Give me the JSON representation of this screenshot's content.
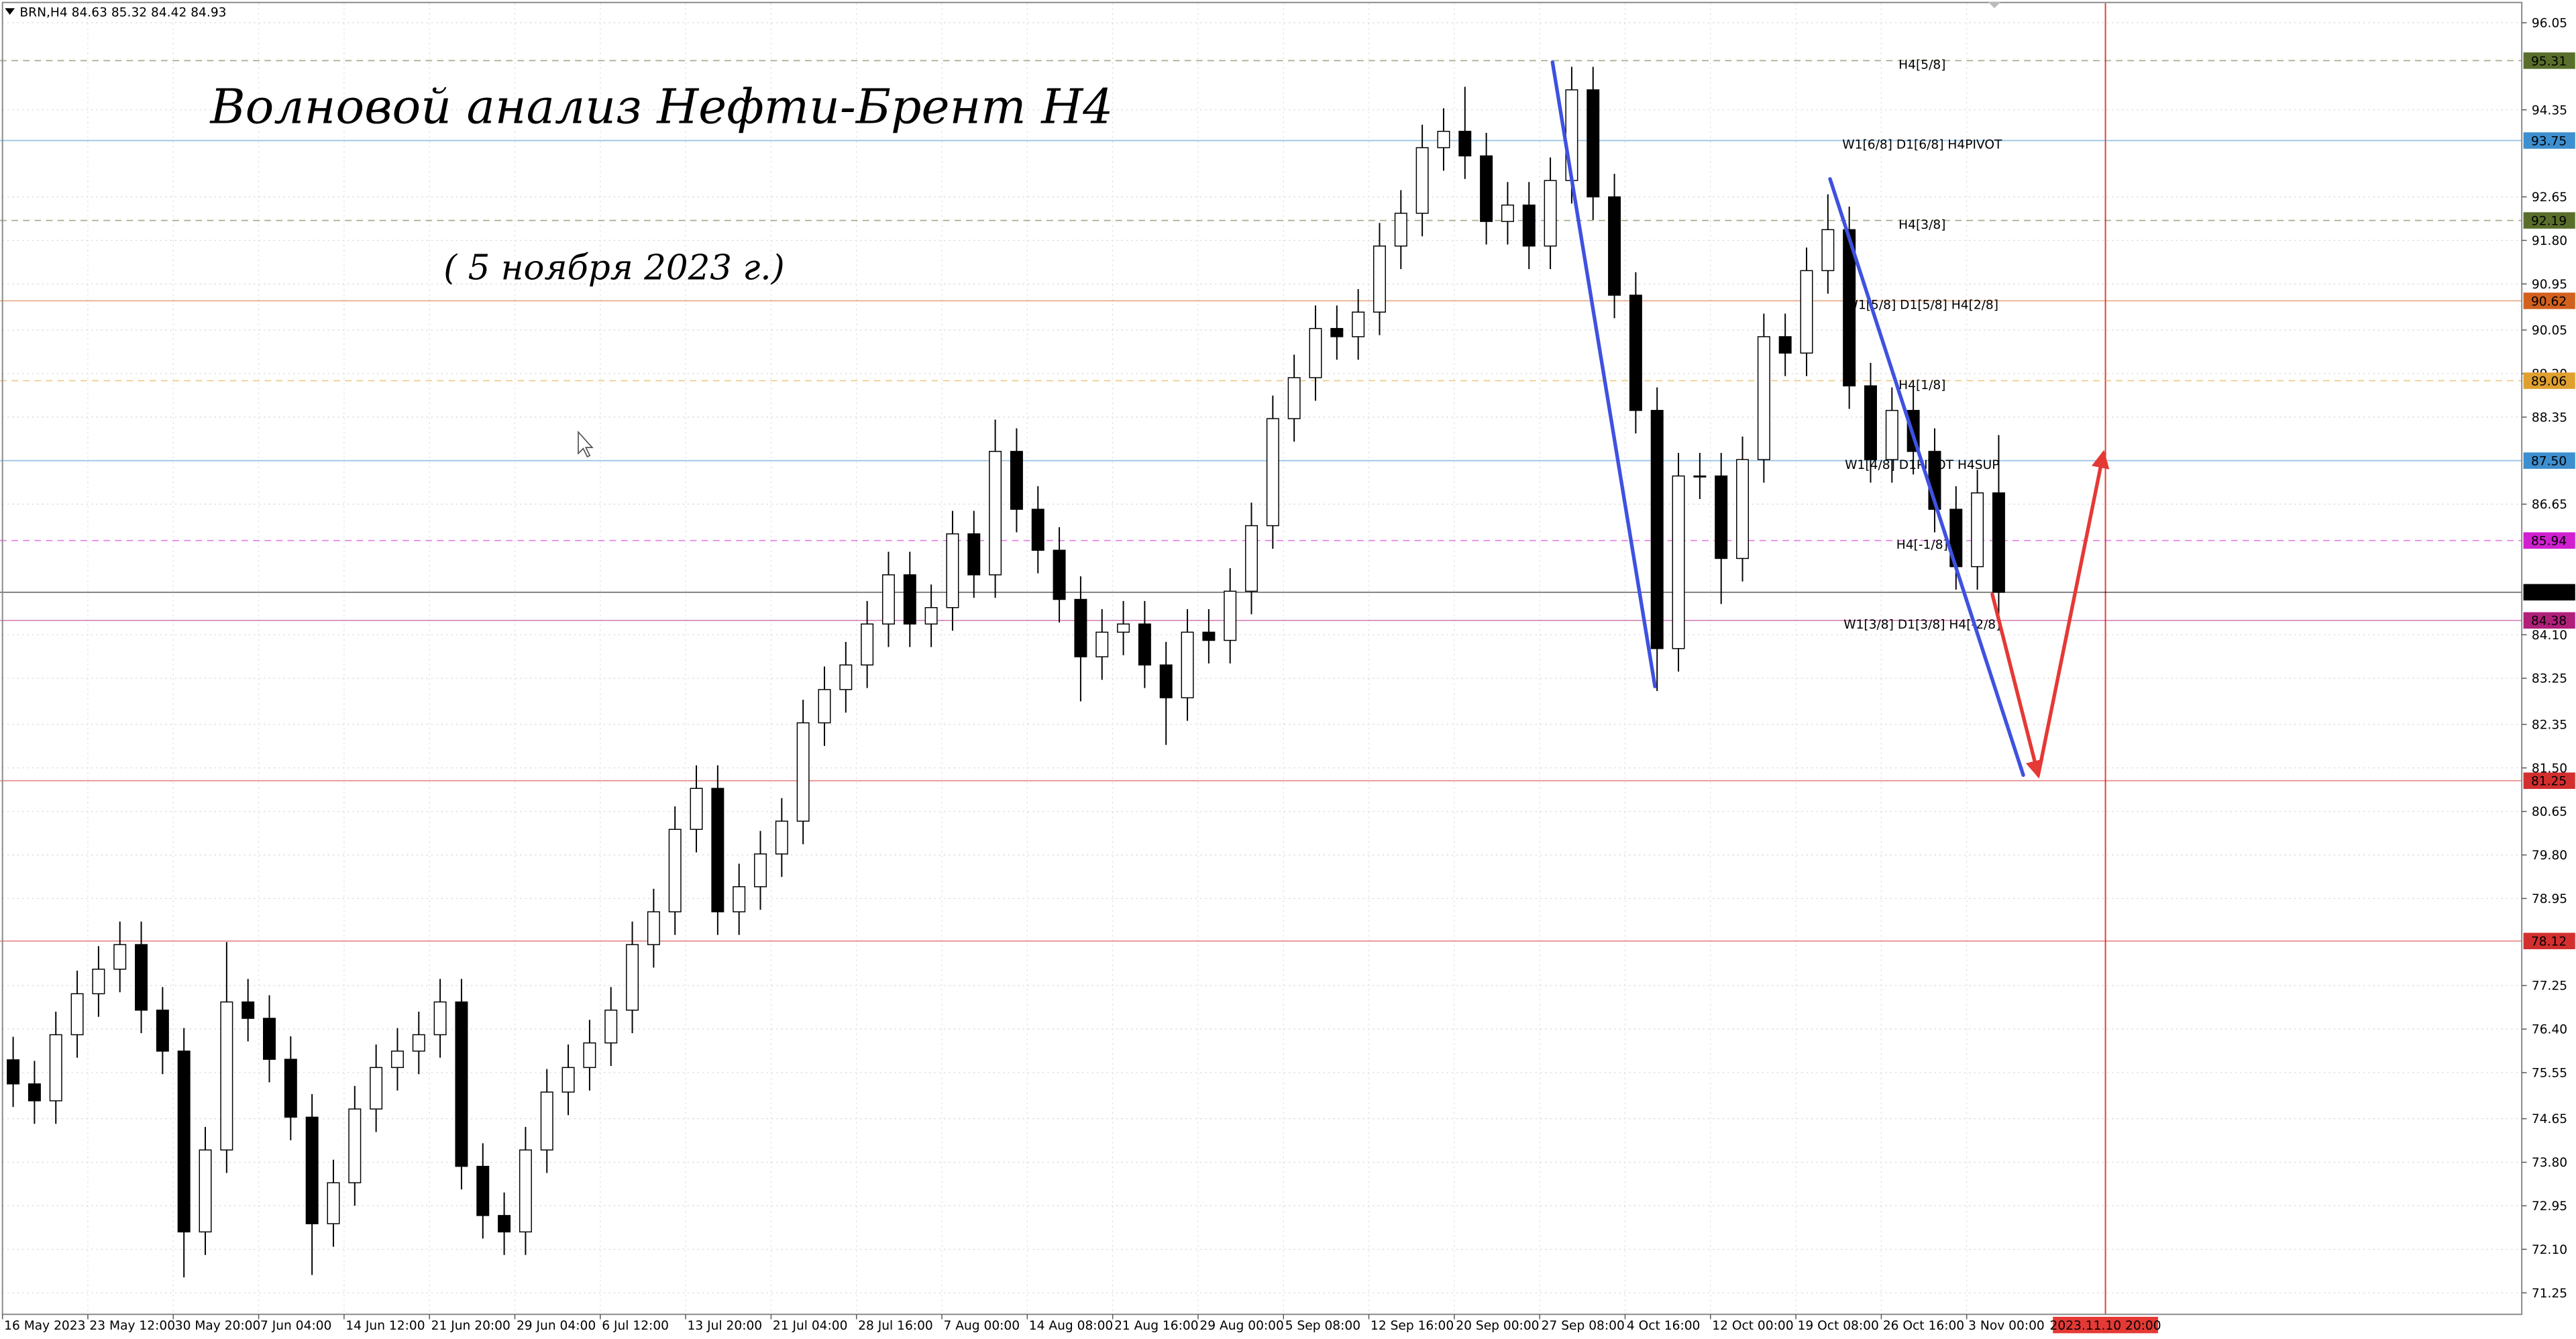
{
  "chart_data": {
    "type": "candlestick",
    "symbol_info": "BRN,H4  84.63 85.32 84.42 84.93",
    "title": "Волновой анализ Нефти-Брент H4",
    "subtitle": "( 5 ноября 2023 г.)",
    "categories": [
      "16 May 2023",
      null,
      null,
      null,
      "23 May 12:00",
      null,
      null,
      null,
      "30 May 20:00",
      null,
      null,
      null,
      "7 Jun 04:00",
      null,
      null,
      null,
      "14 Jun 12:00",
      null,
      null,
      null,
      "21 Jun 20:00",
      null,
      null,
      null,
      "29 Jun 04:00",
      null,
      null,
      null,
      "6 Jul 12:00",
      null,
      null,
      null,
      "13 Jul 20:00",
      null,
      null,
      null,
      "21 Jul 04:00",
      null,
      null,
      null,
      "28 Jul 16:00",
      null,
      null,
      null,
      "7 Aug 00:00",
      null,
      null,
      null,
      "14 Aug 08:00",
      null,
      null,
      null,
      "21 Aug 16:00",
      null,
      null,
      null,
      "29 Aug 00:00",
      null,
      null,
      null,
      "5 Sep 08:00",
      null,
      null,
      null,
      "12 Sep 16:00",
      null,
      null,
      null,
      "20 Sep 00:00",
      null,
      null,
      null,
      "27 Sep 08:00",
      null,
      null,
      null,
      "4 Oct 16:00",
      null,
      null,
      null,
      "12 Oct 00:00",
      null,
      null,
      null,
      "19 Oct 08:00",
      null,
      null,
      null,
      "26 Oct 16:00",
      null,
      null,
      null,
      "3 Nov 00:00",
      null,
      null,
      null,
      null,
      null,
      "2023.11.10 20:00",
      null,
      null,
      null,
      null,
      null,
      null,
      null,
      null,
      null,
      null,
      null,
      null,
      null,
      null,
      null,
      null,
      null,
      null,
      null
    ],
    "open": [
      75.8,
      75.33,
      75.0,
      76.29,
      77.09,
      77.57,
      78.05,
      76.77,
      75.97,
      72.44,
      74.04,
      76.93,
      76.61,
      75.81,
      74.68,
      72.6,
      73.4,
      74.84,
      75.65,
      75.97,
      76.29,
      76.93,
      73.72,
      72.76,
      72.44,
      74.04,
      75.17,
      75.65,
      76.13,
      76.77,
      78.05,
      78.69,
      80.3,
      81.1,
      78.69,
      79.18,
      79.82,
      80.46,
      82.38,
      83.03,
      83.51,
      84.31,
      85.27,
      84.31,
      84.63,
      86.07,
      85.27,
      87.68,
      86.55,
      85.75,
      84.79,
      83.67,
      84.15,
      84.31,
      83.51,
      82.87,
      84.15,
      83.99,
      84.95,
      86.23,
      88.32,
      89.12,
      90.08,
      89.92,
      90.4,
      91.69,
      92.33,
      93.61,
      93.93,
      93.45,
      92.17,
      92.49,
      91.69,
      92.97,
      94.74,
      92.65,
      90.73,
      88.48,
      83.83,
      87.2,
      87.2,
      85.59,
      87.52,
      89.92,
      89.6,
      91.21,
      92.01,
      88.96,
      87.52,
      88.48,
      87.68,
      86.55,
      85.43,
      86.87,
      null,
      null,
      null,
      null,
      null,
      null,
      null,
      null,
      null,
      null,
      null,
      null,
      null,
      null,
      null,
      null,
      null,
      null,
      null,
      null,
      null,
      null,
      null,
      null
    ],
    "high": [
      76.25,
      75.78,
      76.74,
      77.54,
      78.02,
      78.5,
      78.5,
      77.22,
      76.42,
      74.49,
      78.1,
      77.38,
      77.06,
      76.26,
      75.13,
      73.85,
      75.29,
      76.1,
      76.42,
      76.74,
      77.38,
      77.38,
      74.17,
      73.21,
      74.49,
      75.62,
      76.1,
      76.58,
      77.22,
      78.5,
      79.14,
      80.75,
      81.55,
      81.55,
      79.63,
      80.27,
      80.91,
      82.83,
      83.48,
      83.96,
      84.76,
      85.72,
      85.72,
      85.08,
      86.52,
      86.52,
      88.3,
      88.13,
      87.0,
      86.2,
      85.24,
      84.6,
      84.76,
      84.76,
      83.96,
      84.6,
      84.6,
      85.4,
      86.68,
      88.77,
      89.57,
      90.53,
      90.53,
      90.85,
      92.14,
      92.78,
      94.06,
      94.38,
      94.8,
      93.9,
      92.94,
      92.94,
      93.42,
      95.19,
      95.19,
      93.1,
      91.18,
      88.93,
      87.65,
      87.65,
      87.65,
      87.97,
      90.37,
      90.37,
      91.66,
      92.7,
      92.46,
      89.41,
      88.93,
      88.93,
      88.13,
      87.0,
      87.32,
      88.0,
      null,
      null,
      null,
      null,
      null,
      null,
      null,
      null,
      null,
      null,
      null,
      null,
      null,
      null,
      null,
      null,
      null,
      null,
      null,
      null,
      null,
      null,
      null,
      null
    ],
    "low": [
      74.88,
      74.55,
      74.55,
      75.84,
      76.64,
      77.12,
      76.32,
      75.52,
      71.55,
      71.99,
      73.59,
      76.16,
      75.36,
      74.23,
      71.6,
      72.15,
      72.95,
      74.39,
      75.2,
      75.52,
      75.84,
      73.27,
      72.31,
      71.99,
      71.99,
      73.59,
      74.72,
      75.2,
      75.68,
      76.32,
      77.6,
      78.24,
      79.85,
      78.24,
      78.24,
      78.73,
      79.37,
      80.01,
      81.93,
      82.58,
      83.06,
      83.86,
      83.86,
      83.86,
      84.18,
      84.82,
      84.82,
      86.1,
      85.3,
      84.34,
      82.8,
      83.22,
      83.7,
      83.06,
      81.95,
      82.42,
      83.54,
      83.54,
      84.5,
      85.78,
      87.87,
      88.67,
      89.47,
      89.47,
      89.95,
      91.24,
      91.88,
      93.16,
      93.0,
      91.72,
      91.72,
      91.24,
      91.24,
      92.52,
      92.2,
      90.28,
      88.03,
      83.0,
      83.38,
      86.75,
      84.7,
      85.14,
      87.07,
      89.15,
      89.15,
      90.76,
      88.51,
      87.07,
      87.07,
      87.23,
      86.1,
      84.98,
      84.98,
      84.42,
      null,
      null,
      null,
      null,
      null,
      null,
      null,
      null,
      null,
      null,
      null,
      null,
      null,
      null,
      null,
      null,
      null,
      null,
      null,
      null,
      null,
      null,
      null,
      null
    ],
    "close": [
      75.33,
      75.0,
      76.29,
      77.09,
      77.57,
      78.05,
      76.77,
      75.97,
      72.44,
      74.04,
      76.93,
      76.61,
      75.81,
      74.68,
      72.6,
      73.4,
      74.84,
      75.65,
      75.97,
      76.29,
      76.93,
      73.72,
      72.76,
      72.44,
      74.04,
      75.17,
      75.65,
      76.13,
      76.77,
      78.05,
      78.69,
      80.3,
      81.1,
      78.69,
      79.18,
      79.82,
      80.46,
      82.38,
      83.03,
      83.51,
      84.31,
      85.27,
      84.31,
      84.63,
      86.07,
      85.27,
      87.68,
      86.55,
      85.75,
      84.79,
      83.67,
      84.15,
      84.31,
      83.51,
      82.87,
      84.15,
      83.99,
      84.95,
      86.23,
      88.32,
      89.12,
      90.08,
      89.92,
      90.4,
      91.69,
      92.33,
      93.61,
      93.93,
      93.45,
      92.17,
      92.49,
      91.69,
      92.97,
      94.74,
      92.65,
      90.73,
      88.48,
      83.83,
      87.2,
      87.2,
      85.59,
      87.52,
      89.92,
      89.6,
      91.21,
      92.01,
      88.96,
      87.52,
      88.48,
      87.68,
      86.55,
      85.43,
      86.87,
      84.93,
      null,
      null,
      null,
      null,
      null,
      null,
      null,
      null,
      null,
      null,
      null,
      null,
      null,
      null,
      null,
      null,
      null,
      null,
      null,
      null,
      null,
      null,
      null,
      null
    ],
    "bull_color": "#ffffff",
    "bear_color": "#000000",
    "wick_color": "#000000",
    "future_color": "#e53935",
    "ylim": [
      70.83,
      96.43
    ],
    "yticks": [
      96.05,
      94.35,
      92.65,
      {
        "value": 91.8,
        "label": "91.80"
      },
      90.95,
      90.05,
      {
        "value": 89.2,
        "label": "89.20"
      },
      88.35,
      86.65,
      {
        "value": 84.1,
        "label": "84.10"
      },
      83.25,
      82.35,
      {
        "value": 81.5,
        "label": "81.50"
      },
      80.65,
      {
        "value": 79.8,
        "label": "79.80"
      },
      78.95,
      77.25,
      {
        "value": 76.4,
        "label": "76.40"
      },
      75.55,
      74.65,
      {
        "value": 73.8,
        "label": "73.80"
      },
      72.95,
      {
        "value": 72.1,
        "label": "72.10"
      },
      71.25
    ],
    "grid": true,
    "levels": [
      {
        "value": 95.31,
        "label": "H4[5/8]",
        "color": "#5a6e2c",
        "dashed": true
      },
      {
        "value": 93.75,
        "label": "W1[6/8] D1[6/8] H4PIVOT",
        "color": "#3d8fd0",
        "dashed": false
      },
      {
        "value": 92.19,
        "label": "H4[3/8]",
        "color": "#5a6e2c",
        "dashed": true
      },
      {
        "value": 90.62,
        "label": "W1[5/8] D1[5/8] H4[2/8]",
        "color": "#d2601e",
        "dashed": false
      },
      {
        "value": 89.06,
        "label": "H4[1/8]",
        "color": "#e0a030",
        "dashed": true
      },
      {
        "value": 87.5,
        "value_label": "87.50",
        "label": "W1[4/8] D1PIVOT H4SUP",
        "color": "#3d8fd0",
        "dashed": false
      },
      {
        "value": 85.94,
        "label": "H4[-1/8]",
        "color": "#d020d0",
        "dashed": true
      },
      {
        "value": 84.93,
        "color": "#000000",
        "dashed": false
      },
      {
        "value": 84.38,
        "label": "W1[3/8] D1[3/8] H4[-2/8]",
        "color": "#b0207a",
        "dashed": false
      },
      {
        "value": 81.25,
        "color": "#d32f2f",
        "dashed": false
      },
      {
        "value": 78.12,
        "color": "#d32f2f",
        "dashed": false
      }
    ],
    "trendlines": [
      {
        "color": "#3f51e0",
        "arrow": false,
        "points": [
          [
            72.1,
            95.28
          ],
          [
            76.9,
            83.09
          ]
        ]
      },
      {
        "color": "#3f51e0",
        "arrow": false,
        "points": [
          [
            85.1,
            93.0
          ],
          [
            94.15,
            81.36
          ]
        ]
      },
      {
        "color": "#e53935",
        "arrow": true,
        "points": [
          [
            92.7,
            84.89
          ],
          [
            94.85,
            81.36
          ]
        ]
      },
      {
        "color": "#e53935",
        "arrow": true,
        "points": [
          [
            94.85,
            81.36
          ],
          [
            97.9,
            87.64
          ]
        ]
      }
    ]
  }
}
